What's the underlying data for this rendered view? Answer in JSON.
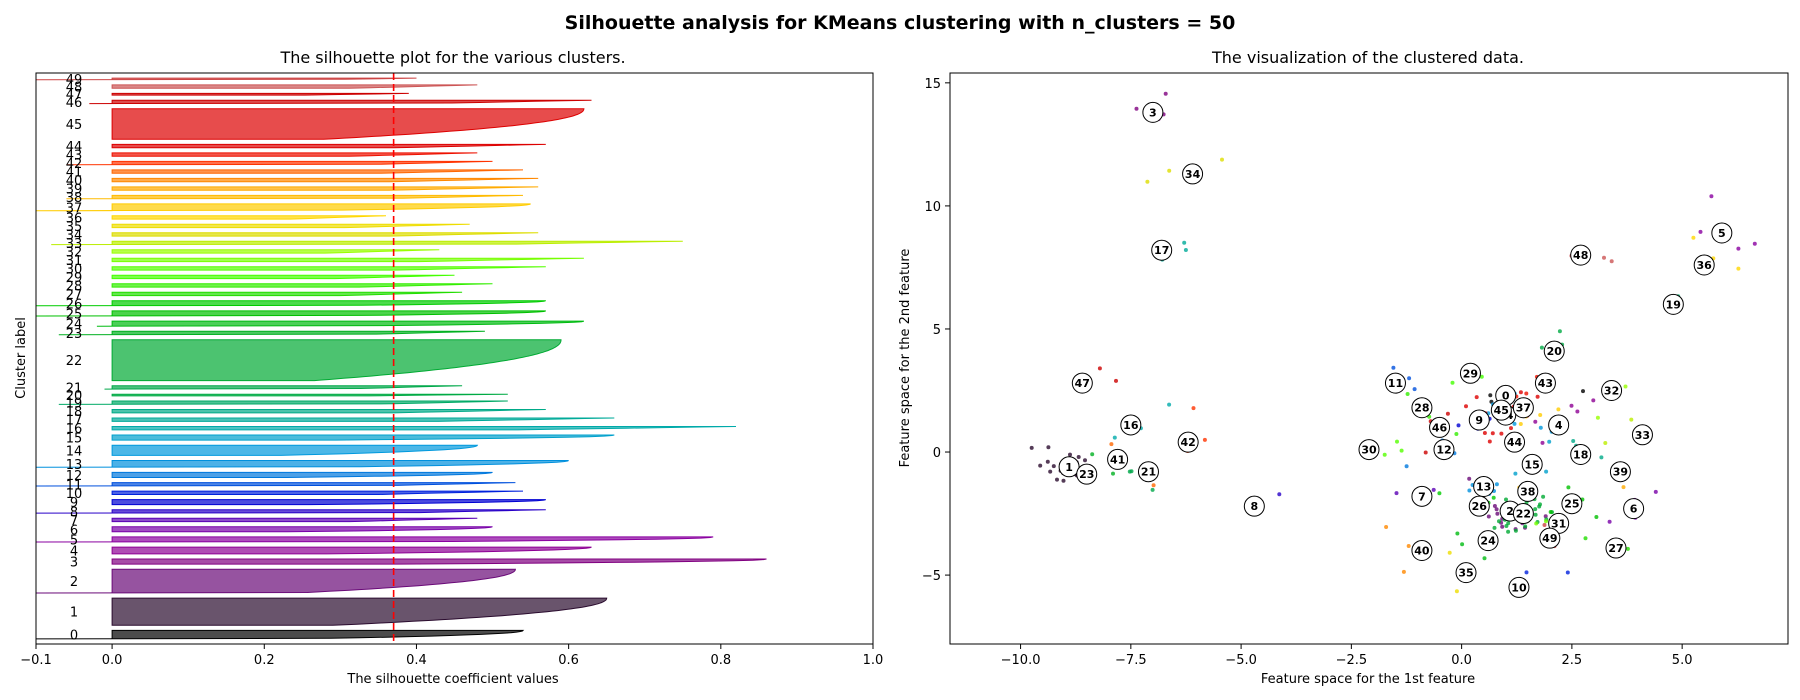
{
  "figure": {
    "title": "Silhouette analysis for KMeans clustering with n_clusters = 50"
  },
  "chart_data": [
    {
      "type": "bar",
      "title": "The silhouette plot for the various clusters.",
      "xlabel": "The silhouette coefficient values",
      "ylabel": "Cluster label",
      "xlim": [
        -0.1,
        1.0
      ],
      "xticks": [
        "−0.1",
        "0.0",
        "0.2",
        "0.4",
        "0.6",
        "0.8",
        "1.0"
      ],
      "xtick_values": [
        -0.1,
        0.0,
        0.2,
        0.4,
        0.6,
        0.8,
        1.0
      ],
      "average_silhouette": 0.37,
      "average_line_color": "#ff0000",
      "clusters": [
        {
          "label": "0",
          "size": 5,
          "max": 0.54,
          "min": -0.1,
          "color": "#000000"
        },
        {
          "label": "1",
          "size": 16,
          "max": 0.65,
          "min": 0.0,
          "color": "#2a0b2e"
        },
        {
          "label": "2",
          "size": 14,
          "max": 0.53,
          "min": -0.1,
          "color": "#6a0a78"
        },
        {
          "label": "3",
          "size": 3,
          "max": 0.86,
          "min": 0.0,
          "color": "#800080"
        },
        {
          "label": "4",
          "size": 4,
          "max": 0.63,
          "min": 0.0,
          "color": "#8d0094"
        },
        {
          "label": "5",
          "size": 3,
          "max": 0.79,
          "min": -0.1,
          "color": "#8a00a0"
        },
        {
          "label": "6",
          "size": 3,
          "max": 0.5,
          "min": 0.0,
          "color": "#7800a8"
        },
        {
          "label": "7",
          "size": 2,
          "max": 0.48,
          "min": 0.0,
          "color": "#5a00b4"
        },
        {
          "label": "8",
          "size": 2,
          "max": 0.57,
          "min": -0.1,
          "color": "#2800c8"
        },
        {
          "label": "9",
          "size": 3,
          "max": 0.57,
          "min": 0.0,
          "color": "#0000d2"
        },
        {
          "label": "10",
          "size": 2,
          "max": 0.54,
          "min": 0.0,
          "color": "#0020dd"
        },
        {
          "label": "11",
          "size": 2,
          "max": 0.53,
          "min": -0.1,
          "color": "#0050dd"
        },
        {
          "label": "12",
          "size": 3,
          "max": 0.5,
          "min": 0.0,
          "color": "#0078dd"
        },
        {
          "label": "13",
          "size": 4,
          "max": 0.6,
          "min": -0.1,
          "color": "#0090dd"
        },
        {
          "label": "14",
          "size": 6,
          "max": 0.48,
          "min": 0.0,
          "color": "#0099dd"
        },
        {
          "label": "15",
          "size": 3,
          "max": 0.66,
          "min": 0.0,
          "color": "#00a0cc"
        },
        {
          "label": "16",
          "size": 2,
          "max": 0.82,
          "min": 0.0,
          "color": "#00aaaa"
        },
        {
          "label": "17",
          "size": 2,
          "max": 0.66,
          "min": 0.0,
          "color": "#00aa99"
        },
        {
          "label": "18",
          "size": 2,
          "max": 0.57,
          "min": 0.0,
          "color": "#00aa88"
        },
        {
          "label": "19",
          "size": 2,
          "max": 0.52,
          "min": -0.07,
          "color": "#00aa66"
        },
        {
          "label": "20",
          "size": 1,
          "max": 0.52,
          "min": 0.0,
          "color": "#00aa44"
        },
        {
          "label": "21",
          "size": 2,
          "max": 0.46,
          "min": -0.01,
          "color": "#00a84a"
        },
        {
          "label": "22",
          "size": 24,
          "max": 0.59,
          "min": 0.0,
          "color": "#00aa33"
        },
        {
          "label": "23",
          "size": 2,
          "max": 0.49,
          "min": -0.07,
          "color": "#00b020"
        },
        {
          "label": "24",
          "size": 3,
          "max": 0.62,
          "min": -0.02,
          "color": "#00bb11"
        },
        {
          "label": "25",
          "size": 3,
          "max": 0.57,
          "min": -0.1,
          "color": "#00c000"
        },
        {
          "label": "26",
          "size": 3,
          "max": 0.57,
          "min": -0.1,
          "color": "#00cc00"
        },
        {
          "label": "27",
          "size": 2,
          "max": 0.46,
          "min": 0.0,
          "color": "#22dd00"
        },
        {
          "label": "28",
          "size": 2,
          "max": 0.5,
          "min": 0.0,
          "color": "#33ee00"
        },
        {
          "label": "29",
          "size": 2,
          "max": 0.45,
          "min": 0.0,
          "color": "#44ff00"
        },
        {
          "label": "30",
          "size": 2,
          "max": 0.57,
          "min": 0.0,
          "color": "#55ff00"
        },
        {
          "label": "31",
          "size": 2,
          "max": 0.62,
          "min": 0.0,
          "color": "#77ff00"
        },
        {
          "label": "32",
          "size": 2,
          "max": 0.43,
          "min": 0.0,
          "color": "#99ff00"
        },
        {
          "label": "33",
          "size": 2,
          "max": 0.75,
          "min": -0.08,
          "color": "#bbee00"
        },
        {
          "label": "34",
          "size": 2,
          "max": 0.56,
          "min": 0.0,
          "color": "#dddd00"
        },
        {
          "label": "35",
          "size": 2,
          "max": 0.47,
          "min": 0.0,
          "color": "#eedd00"
        },
        {
          "label": "36",
          "size": 2,
          "max": 0.36,
          "min": 0.0,
          "color": "#ffd700"
        },
        {
          "label": "37",
          "size": 4,
          "max": 0.55,
          "min": -0.1,
          "color": "#ffcc00"
        },
        {
          "label": "38",
          "size": 2,
          "max": 0.54,
          "min": -0.06,
          "color": "#ffbb00"
        },
        {
          "label": "39",
          "size": 2,
          "max": 0.56,
          "min": 0.0,
          "color": "#ffaa00"
        },
        {
          "label": "40",
          "size": 2,
          "max": 0.56,
          "min": 0.0,
          "color": "#ff8800"
        },
        {
          "label": "41",
          "size": 2,
          "max": 0.54,
          "min": 0.0,
          "color": "#ff6600"
        },
        {
          "label": "42",
          "size": 2,
          "max": 0.5,
          "min": -0.06,
          "color": "#ff3300"
        },
        {
          "label": "43",
          "size": 2,
          "max": 0.48,
          "min": 0.0,
          "color": "#ee1100"
        },
        {
          "label": "44",
          "size": 2,
          "max": 0.57,
          "min": 0.0,
          "color": "#dd0000"
        },
        {
          "label": "45",
          "size": 18,
          "max": 0.62,
          "min": 0.0,
          "color": "#dd0000"
        },
        {
          "label": "46",
          "size": 2,
          "max": 0.63,
          "min": -0.03,
          "color": "#cc0000"
        },
        {
          "label": "47",
          "size": 1,
          "max": 0.39,
          "min": 0.0,
          "color": "#cc0000"
        },
        {
          "label": "48",
          "size": 2,
          "max": 0.48,
          "min": 0.0,
          "color": "#cc5555"
        },
        {
          "label": "49",
          "size": 1,
          "max": 0.4,
          "min": -0.1,
          "color": "#cc4444"
        }
      ]
    },
    {
      "type": "scatter",
      "title": "The visualization of the clustered data.",
      "xlabel": "Feature space for the 1st feature",
      "ylabel": "Feature space for the 2nd feature",
      "xlim": [
        -11.6,
        7.4
      ],
      "ylim": [
        -7.8,
        15.4
      ],
      "xticks": [
        "−10.0",
        "−7.5",
        "−5.0",
        "−2.5",
        "0.0",
        "2.5",
        "5.0"
      ],
      "xtick_values": [
        -10.0,
        -7.5,
        -5.0,
        -2.5,
        0.0,
        2.5,
        5.0
      ],
      "yticks": [
        "−5",
        "0",
        "5",
        "10",
        "15"
      ],
      "ytick_values": [
        -5,
        0,
        5,
        10,
        15
      ],
      "centers": [
        {
          "label": "0",
          "x": 1.0,
          "y": 2.3
        },
        {
          "label": "1",
          "x": -8.9,
          "y": -0.6
        },
        {
          "label": "2",
          "x": 1.1,
          "y": -2.4
        },
        {
          "label": "3",
          "x": -7.0,
          "y": 13.8
        },
        {
          "label": "4",
          "x": 2.2,
          "y": 1.1
        },
        {
          "label": "5",
          "x": 5.9,
          "y": 8.9
        },
        {
          "label": "6",
          "x": 3.9,
          "y": -2.3
        },
        {
          "label": "7",
          "x": -0.9,
          "y": -1.8
        },
        {
          "label": "8",
          "x": -4.7,
          "y": -2.2
        },
        {
          "label": "9",
          "x": 0.4,
          "y": 1.3
        },
        {
          "label": "10",
          "x": 1.3,
          "y": -5.5
        },
        {
          "label": "11",
          "x": -1.5,
          "y": 2.8
        },
        {
          "label": "12",
          "x": -0.4,
          "y": 0.1
        },
        {
          "label": "13",
          "x": 0.5,
          "y": -1.4
        },
        {
          "label": "14",
          "x": 1.0,
          "y": 1.5
        },
        {
          "label": "15",
          "x": 1.6,
          "y": -0.5
        },
        {
          "label": "16",
          "x": -7.5,
          "y": 1.1
        },
        {
          "label": "17",
          "x": -6.8,
          "y": 8.2
        },
        {
          "label": "18",
          "x": 2.7,
          "y": -0.1
        },
        {
          "label": "19",
          "x": 4.8,
          "y": 6.0
        },
        {
          "label": "20",
          "x": 2.1,
          "y": 4.1
        },
        {
          "label": "21",
          "x": -7.1,
          "y": -0.8
        },
        {
          "label": "22",
          "x": 1.4,
          "y": -2.5
        },
        {
          "label": "23",
          "x": -8.5,
          "y": -0.9
        },
        {
          "label": "24",
          "x": 0.6,
          "y": -3.6
        },
        {
          "label": "25",
          "x": 2.5,
          "y": -2.1
        },
        {
          "label": "26",
          "x": 0.4,
          "y": -2.2
        },
        {
          "label": "27",
          "x": 3.5,
          "y": -3.9
        },
        {
          "label": "28",
          "x": -0.9,
          "y": 1.8
        },
        {
          "label": "29",
          "x": 0.2,
          "y": 3.2
        },
        {
          "label": "30",
          "x": -2.1,
          "y": 0.1
        },
        {
          "label": "31",
          "x": 2.2,
          "y": -2.9
        },
        {
          "label": "32",
          "x": 3.4,
          "y": 2.5
        },
        {
          "label": "33",
          "x": 4.1,
          "y": 0.7
        },
        {
          "label": "34",
          "x": -6.1,
          "y": 11.3
        },
        {
          "label": "35",
          "x": 0.1,
          "y": -4.9
        },
        {
          "label": "36",
          "x": 5.5,
          "y": 7.6
        },
        {
          "label": "37",
          "x": 1.4,
          "y": 1.8
        },
        {
          "label": "38",
          "x": 1.5,
          "y": -1.6
        },
        {
          "label": "39",
          "x": 3.6,
          "y": -0.8
        },
        {
          "label": "40",
          "x": -0.9,
          "y": -4.0
        },
        {
          "label": "41",
          "x": -7.8,
          "y": -0.3
        },
        {
          "label": "42",
          "x": -6.2,
          "y": 0.4
        },
        {
          "label": "43",
          "x": 1.9,
          "y": 2.8
        },
        {
          "label": "44",
          "x": 1.2,
          "y": 0.4
        },
        {
          "label": "45",
          "x": 0.9,
          "y": 1.7
        },
        {
          "label": "46",
          "x": -0.5,
          "y": 1.0
        },
        {
          "label": "47",
          "x": -8.6,
          "y": 2.8
        },
        {
          "label": "48",
          "x": 2.7,
          "y": 8.0
        },
        {
          "label": "49",
          "x": 2.0,
          "y": -3.5
        }
      ],
      "cluster_colors_note": "points colored by cluster"
    }
  ]
}
